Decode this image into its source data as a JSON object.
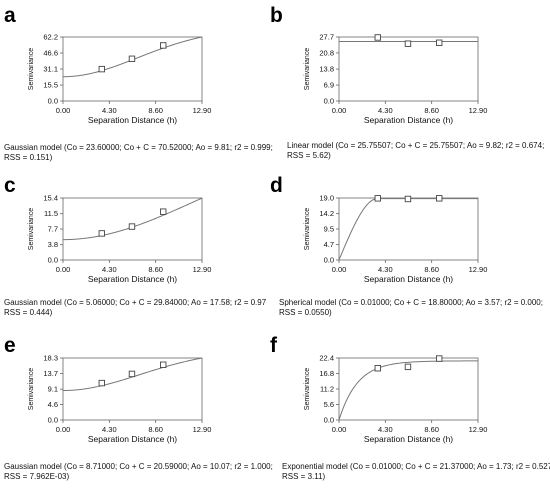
{
  "chart_data": [
    {
      "type": "scatter",
      "panel_label": "a",
      "xlabel": "Separation Distance (h)",
      "ylabel": "Semivariance",
      "xticks": [
        "0.00",
        "4.30",
        "8.60",
        "12.90"
      ],
      "yticks": [
        "0.0",
        "15.5",
        "31.1",
        "46.6",
        "62.2"
      ],
      "xlim": [
        0,
        12.9
      ],
      "ylim": [
        0,
        62.2
      ],
      "model": {
        "kind": "gaussian",
        "c0": 23.6,
        "sill": 70.52,
        "a0": 9.81
      },
      "points": [
        {
          "x": 3.6,
          "y": 31.0
        },
        {
          "x": 6.4,
          "y": 41.0
        },
        {
          "x": 9.3,
          "y": 54.0
        }
      ],
      "caption_lines": [
        "Gaussian model (Co = 23.60000; Co + C = 70.52000; Ao = 9.81; r2 = 0.999;",
        "RSS = 0.151)"
      ]
    },
    {
      "type": "scatter",
      "panel_label": "b",
      "xlabel": "Separation Distance (h)",
      "ylabel": "Semivariance",
      "xticks": [
        "0.00",
        "4.30",
        "8.60",
        "12.90"
      ],
      "yticks": [
        "0.0",
        "6.9",
        "13.8",
        "20.8",
        "27.7"
      ],
      "xlim": [
        0,
        12.9
      ],
      "ylim": [
        0,
        27.7
      ],
      "model": {
        "kind": "linear",
        "c0": 25.75507,
        "sill": 25.75507,
        "a0": 9.82
      },
      "points": [
        {
          "x": 3.6,
          "y": 27.5
        },
        {
          "x": 6.4,
          "y": 24.8
        },
        {
          "x": 9.3,
          "y": 25.2
        }
      ],
      "caption_lines": [
        "Linear model (Co = 25.75507; Co + C = 25.75507; Ao = 9.82; r2 = 0.674;",
        "RSS = 5.62)"
      ]
    },
    {
      "type": "scatter",
      "panel_label": "c",
      "xlabel": "Separation Distance (h)",
      "ylabel": "Semivariance",
      "xticks": [
        "0.00",
        "4.30",
        "8.60",
        "12.90"
      ],
      "yticks": [
        "0.0",
        "3.8",
        "7.7",
        "11.5",
        "15.4"
      ],
      "xlim": [
        0,
        12.9
      ],
      "ylim": [
        0,
        15.4
      ],
      "model": {
        "kind": "gaussian",
        "c0": 5.06,
        "sill": 29.84,
        "a0": 17.58
      },
      "points": [
        {
          "x": 3.6,
          "y": 6.6
        },
        {
          "x": 6.4,
          "y": 8.3
        },
        {
          "x": 9.3,
          "y": 12.0
        }
      ],
      "caption_lines": [
        "Gaussian model (Co = 5.06000; Co + C = 29.84000; Ao = 17.58; r2 = 0.97",
        "RSS = 0.444)"
      ]
    },
    {
      "type": "scatter",
      "panel_label": "d",
      "xlabel": "Separation Distance (h)",
      "ylabel": "Semivariance",
      "xticks": [
        "0.00",
        "4.30",
        "8.60",
        "12.90"
      ],
      "yticks": [
        "0.0",
        "4.7",
        "9.5",
        "14.2",
        "19.0"
      ],
      "xlim": [
        0,
        12.9
      ],
      "ylim": [
        0,
        19.0
      ],
      "model": {
        "kind": "spherical",
        "c0": 0.01,
        "sill": 18.8,
        "a0": 3.57
      },
      "points": [
        {
          "x": 3.6,
          "y": 18.9
        },
        {
          "x": 6.4,
          "y": 18.7
        },
        {
          "x": 9.3,
          "y": 18.9
        }
      ],
      "caption_lines": [
        "Spherical model (Co = 0.01000; Co + C = 18.80000; Ao = 3.57; r2 = 0.000;",
        "RSS = 0.0550)"
      ]
    },
    {
      "type": "scatter",
      "panel_label": "e",
      "xlabel": "Separation Distance (h)",
      "ylabel": "Semivariance",
      "xticks": [
        "0.00",
        "4.30",
        "8.60",
        "12.90"
      ],
      "yticks": [
        "0.0",
        "4.6",
        "9.1",
        "13.7",
        "18.3"
      ],
      "xlim": [
        0,
        12.9
      ],
      "ylim": [
        0,
        18.3
      ],
      "model": {
        "kind": "gaussian",
        "c0": 8.71,
        "sill": 20.59,
        "a0": 10.07
      },
      "points": [
        {
          "x": 3.6,
          "y": 10.9
        },
        {
          "x": 6.4,
          "y": 13.6
        },
        {
          "x": 9.3,
          "y": 16.3
        }
      ],
      "caption_lines": [
        "Gaussian model (Co = 8.71000; Co + C = 20.59000; Ao = 10.07; r2 = 1.000;",
        "RSS = 7.962E-03)"
      ]
    },
    {
      "type": "scatter",
      "panel_label": "f",
      "xlabel": "Separation Distance (h)",
      "ylabel": "Semivariance",
      "xticks": [
        "0.00",
        "4.30",
        "8.60",
        "12.90"
      ],
      "yticks": [
        "0.0",
        "5.6",
        "11.2",
        "16.8",
        "22.4"
      ],
      "xlim": [
        0,
        12.9
      ],
      "ylim": [
        0,
        22.4
      ],
      "model": {
        "kind": "exponential",
        "c0": 0.01,
        "sill": 21.37,
        "a0": 1.73
      },
      "points": [
        {
          "x": 3.6,
          "y": 18.7
        },
        {
          "x": 6.4,
          "y": 19.2
        },
        {
          "x": 9.3,
          "y": 22.2
        }
      ],
      "caption_lines": [
        "Exponential model (Co = 0.01000; Co + C = 21.37000; Ao = 1.73; r2 = 0.527;",
        "RSS = 3.11)"
      ]
    }
  ]
}
